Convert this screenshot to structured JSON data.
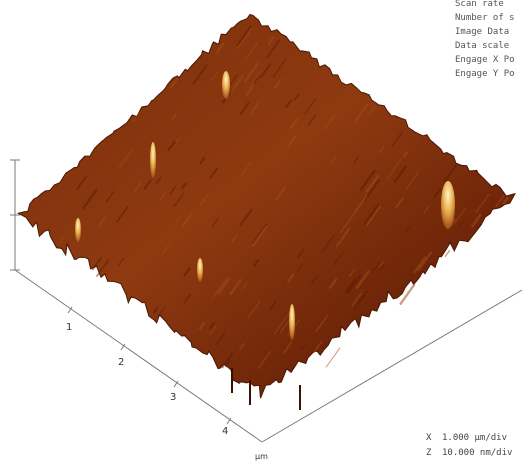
{
  "info_panel": {
    "lines": [
      "Scan rate",
      "Number of s",
      "Image Data",
      "Data scale",
      "Engage X Po",
      "Engage Y Po"
    ]
  },
  "axis": {
    "ticks": [
      "1",
      "2",
      "3",
      "4"
    ],
    "unit": "µm"
  },
  "scale": {
    "x_label": "X",
    "x_value": "1.000 µm/div",
    "z_label": "Z",
    "z_value": "10.000 nm/div"
  }
}
